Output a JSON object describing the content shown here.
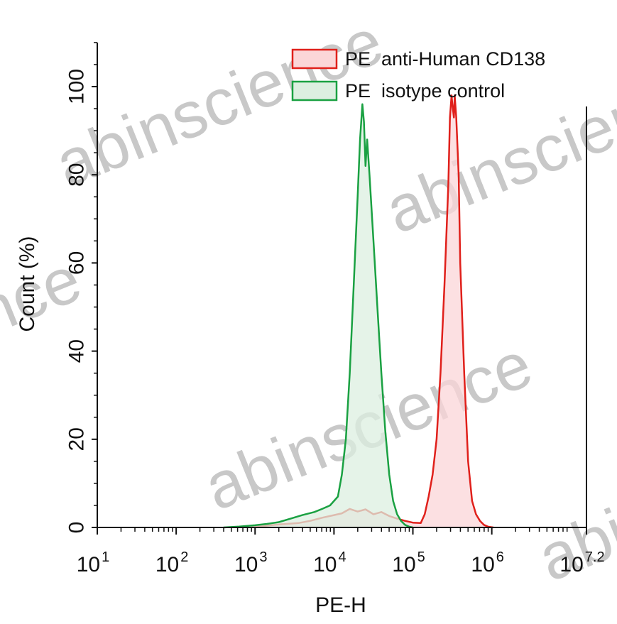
{
  "chart_data": {
    "type": "area",
    "xlabel": "PE-H",
    "ylabel": "Count (%)",
    "x_scale": "log10",
    "xlim_exponents": [
      1,
      7.2
    ],
    "ylim": [
      0,
      110
    ],
    "x_ticks": [
      {
        "base": "10",
        "exp": "1",
        "value": 1
      },
      {
        "base": "10",
        "exp": "2",
        "value": 2
      },
      {
        "base": "10",
        "exp": "3",
        "value": 3
      },
      {
        "base": "10",
        "exp": "4",
        "value": 4
      },
      {
        "base": "10",
        "exp": "5",
        "value": 5
      },
      {
        "base": "10",
        "exp": "6",
        "value": 6
      },
      {
        "base": "10",
        "exp": "7.2",
        "value": 7.2
      }
    ],
    "y_ticks": [
      {
        "label": "0",
        "value": 0
      },
      {
        "label": "20",
        "value": 20
      },
      {
        "label": "40",
        "value": 40
      },
      {
        "label": "60",
        "value": 60
      },
      {
        "label": "80",
        "value": 80
      },
      {
        "label": "100",
        "value": 100
      }
    ],
    "legend_position": "top-right",
    "series": [
      {
        "name": "PE  anti-Human CD138",
        "stroke": "#e0201b",
        "fill": "#fbd6d8",
        "points": [
          [
            2.95,
            0
          ],
          [
            3.1,
            0.3
          ],
          [
            3.25,
            0.6
          ],
          [
            3.4,
            0.8
          ],
          [
            3.55,
            1.0
          ],
          [
            3.7,
            1.5
          ],
          [
            3.85,
            2.2
          ],
          [
            4.0,
            2.8
          ],
          [
            4.1,
            3.2
          ],
          [
            4.2,
            4.2
          ],
          [
            4.3,
            3.6
          ],
          [
            4.4,
            4.1
          ],
          [
            4.5,
            3.0
          ],
          [
            4.6,
            3.5
          ],
          [
            4.7,
            2.6
          ],
          [
            4.8,
            2.0
          ],
          [
            4.9,
            1.5
          ],
          [
            5.0,
            1.1
          ],
          [
            5.1,
            1.0
          ],
          [
            5.15,
            3.0
          ],
          [
            5.2,
            7.0
          ],
          [
            5.25,
            12
          ],
          [
            5.3,
            20
          ],
          [
            5.35,
            35
          ],
          [
            5.4,
            55
          ],
          [
            5.45,
            78
          ],
          [
            5.47,
            93
          ],
          [
            5.49,
            98
          ],
          [
            5.5,
            96
          ],
          [
            5.52,
            93
          ],
          [
            5.53,
            98
          ],
          [
            5.55,
            93
          ],
          [
            5.58,
            80
          ],
          [
            5.6,
            60
          ],
          [
            5.65,
            35
          ],
          [
            5.7,
            15
          ],
          [
            5.75,
            6
          ],
          [
            5.8,
            3
          ],
          [
            5.85,
            1.5
          ],
          [
            5.9,
            0.6
          ],
          [
            5.95,
            0.2
          ],
          [
            6.02,
            0
          ]
        ]
      },
      {
        "name": "PE  isotype control",
        "stroke": "#1aa142",
        "fill": "#dcefe0",
        "points": [
          [
            2.6,
            0
          ],
          [
            2.8,
            0.2
          ],
          [
            3.0,
            0.5
          ],
          [
            3.15,
            0.8
          ],
          [
            3.3,
            1.2
          ],
          [
            3.45,
            2.0
          ],
          [
            3.6,
            2.8
          ],
          [
            3.75,
            3.5
          ],
          [
            3.85,
            4.2
          ],
          [
            3.95,
            5.0
          ],
          [
            4.05,
            7.0
          ],
          [
            4.1,
            12
          ],
          [
            4.15,
            20
          ],
          [
            4.2,
            35
          ],
          [
            4.25,
            55
          ],
          [
            4.3,
            75
          ],
          [
            4.33,
            88
          ],
          [
            4.36,
            96
          ],
          [
            4.38,
            92
          ],
          [
            4.4,
            82
          ],
          [
            4.42,
            88
          ],
          [
            4.45,
            80
          ],
          [
            4.5,
            65
          ],
          [
            4.55,
            50
          ],
          [
            4.6,
            35
          ],
          [
            4.65,
            22
          ],
          [
            4.7,
            12
          ],
          [
            4.75,
            6
          ],
          [
            4.8,
            3.0
          ],
          [
            4.85,
            1.5
          ],
          [
            4.9,
            0.6
          ],
          [
            4.95,
            0.2
          ],
          [
            5.0,
            0
          ]
        ]
      }
    ]
  },
  "watermarks": [
    "abinscience",
    "abinscience",
    "abinscience",
    "abinscience",
    "abinscience",
    "abinscience"
  ]
}
